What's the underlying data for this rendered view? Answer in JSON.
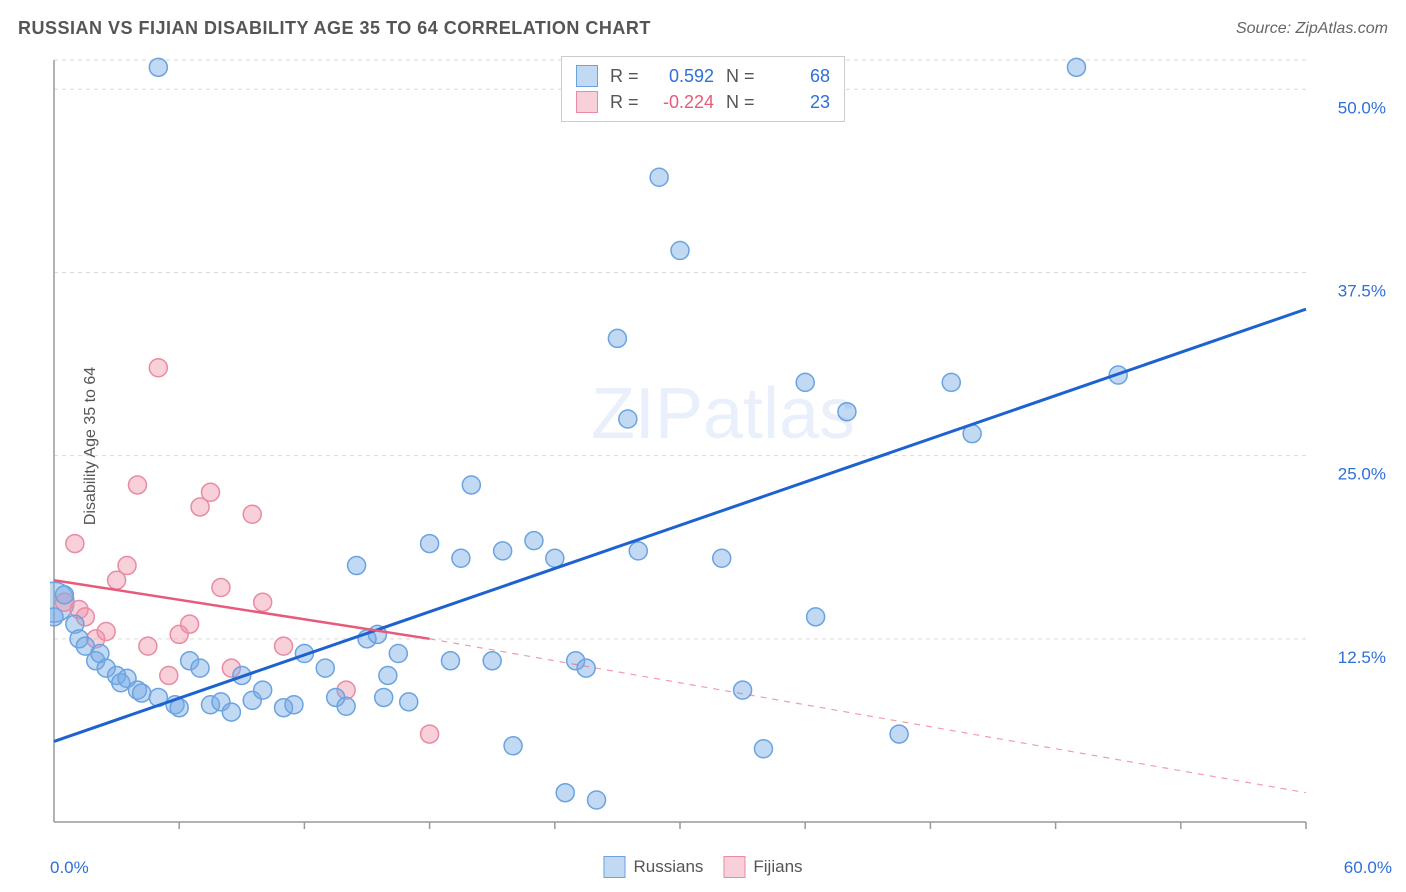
{
  "title": "RUSSIAN VS FIJIAN DISABILITY AGE 35 TO 64 CORRELATION CHART",
  "source": "Source: ZipAtlas.com",
  "ylabel": "Disability Age 35 to 64",
  "watermark": "ZIPatlas",
  "chart": {
    "type": "scatter",
    "background_color": "#ffffff",
    "grid_color": "#d9d9d9",
    "grid_dash": "4,4",
    "axis_color": "#999999",
    "tick_color": "#999999",
    "xlim": [
      0,
      60
    ],
    "ylim": [
      0,
      52
    ],
    "x_label_min": "0.0%",
    "x_label_max": "60.0%",
    "x_label_color": "#2e6fd9",
    "y_ticks": [
      12.5,
      25.0,
      37.5,
      50.0
    ],
    "y_tick_labels": [
      "12.5%",
      "25.0%",
      "37.5%",
      "50.0%"
    ],
    "y_label_color": "#2e6fd9",
    "x_minor_ticks": [
      6,
      12,
      18,
      24,
      30,
      36,
      42,
      48,
      54,
      60
    ],
    "label_fontsize": 17
  },
  "series": {
    "russians": {
      "name": "Russians",
      "fill": "rgba(120,170,230,0.45)",
      "stroke": "#6aa3e0",
      "line_color": "#1e62d0",
      "line_width": 3,
      "r_value": "0.592",
      "r_color": "#2e6fd9",
      "n_value": "68",
      "n_color": "#2e6fd9",
      "trend": {
        "x1": 0,
        "y1": 5.5,
        "x2": 60,
        "y2": 35.0,
        "extrapolate_from": 60
      },
      "marker_r": 9,
      "points": [
        [
          0,
          14
        ],
        [
          0.5,
          15.5
        ],
        [
          1,
          13.5
        ],
        [
          1.2,
          12.5
        ],
        [
          1.5,
          12
        ],
        [
          2,
          11
        ],
        [
          2.2,
          11.5
        ],
        [
          2.5,
          10.5
        ],
        [
          3,
          10
        ],
        [
          3.2,
          9.5
        ],
        [
          3.5,
          9.8
        ],
        [
          4,
          9
        ],
        [
          4.2,
          8.8
        ],
        [
          5,
          8.5
        ],
        [
          5.8,
          8
        ],
        [
          6,
          7.8
        ],
        [
          6.5,
          11
        ],
        [
          7,
          10.5
        ],
        [
          7.5,
          8
        ],
        [
          8,
          8.2
        ],
        [
          8.5,
          7.5
        ],
        [
          9,
          10
        ],
        [
          9.5,
          8.3
        ],
        [
          10,
          9
        ],
        [
          11,
          7.8
        ],
        [
          11.5,
          8
        ],
        [
          12,
          11.5
        ],
        [
          13,
          10.5
        ],
        [
          13.5,
          8.5
        ],
        [
          14,
          7.9
        ],
        [
          14.5,
          17.5
        ],
        [
          15,
          12.5
        ],
        [
          15.5,
          12.8
        ],
        [
          15.8,
          8.5
        ],
        [
          16,
          10
        ],
        [
          16.5,
          11.5
        ],
        [
          17,
          8.2
        ],
        [
          18,
          19
        ],
        [
          19,
          11
        ],
        [
          19.5,
          18
        ],
        [
          20,
          23
        ],
        [
          21,
          11
        ],
        [
          21.5,
          18.5
        ],
        [
          22,
          5.2
        ],
        [
          23,
          19.2
        ],
        [
          24,
          18
        ],
        [
          24.5,
          2
        ],
        [
          25,
          11
        ],
        [
          25.5,
          10.5
        ],
        [
          26,
          1.5
        ],
        [
          27,
          33
        ],
        [
          27.5,
          27.5
        ],
        [
          28,
          18.5
        ],
        [
          29,
          44
        ],
        [
          30,
          39
        ],
        [
          32,
          18
        ],
        [
          33,
          9
        ],
        [
          34,
          5
        ],
        [
          36,
          30
        ],
        [
          36.5,
          14
        ],
        [
          38,
          28
        ],
        [
          40.5,
          6
        ],
        [
          43,
          30
        ],
        [
          44,
          26.5
        ],
        [
          49,
          51.5
        ],
        [
          51,
          30.5
        ],
        [
          5,
          51.5
        ]
      ],
      "big_point": {
        "x": 0,
        "y": 15,
        "r": 20
      }
    },
    "fijians": {
      "name": "Fijians",
      "fill": "rgba(240,150,170,0.45)",
      "stroke": "#e88ba3",
      "line_color": "#e85a7a",
      "line_width": 2.5,
      "r_value": "-0.224",
      "r_color": "#e85a7a",
      "n_value": "23",
      "n_color": "#2e6fd9",
      "trend": {
        "x1": 0,
        "y1": 16.5,
        "x2": 18,
        "y2": 12.5,
        "extrapolate_to": 60,
        "extrap_y": 2
      },
      "marker_r": 9,
      "points": [
        [
          0.5,
          15
        ],
        [
          1,
          19
        ],
        [
          1.2,
          14.5
        ],
        [
          1.5,
          14
        ],
        [
          2,
          12.5
        ],
        [
          2.5,
          13
        ],
        [
          3,
          16.5
        ],
        [
          3.5,
          17.5
        ],
        [
          4,
          23
        ],
        [
          4.5,
          12
        ],
        [
          5,
          31
        ],
        [
          5.5,
          10
        ],
        [
          6,
          12.8
        ],
        [
          6.5,
          13.5
        ],
        [
          7,
          21.5
        ],
        [
          7.5,
          22.5
        ],
        [
          8,
          16
        ],
        [
          8.5,
          10.5
        ],
        [
          9.5,
          21
        ],
        [
          10,
          15
        ],
        [
          11,
          12
        ],
        [
          14,
          9
        ],
        [
          18,
          6
        ]
      ]
    }
  }
}
